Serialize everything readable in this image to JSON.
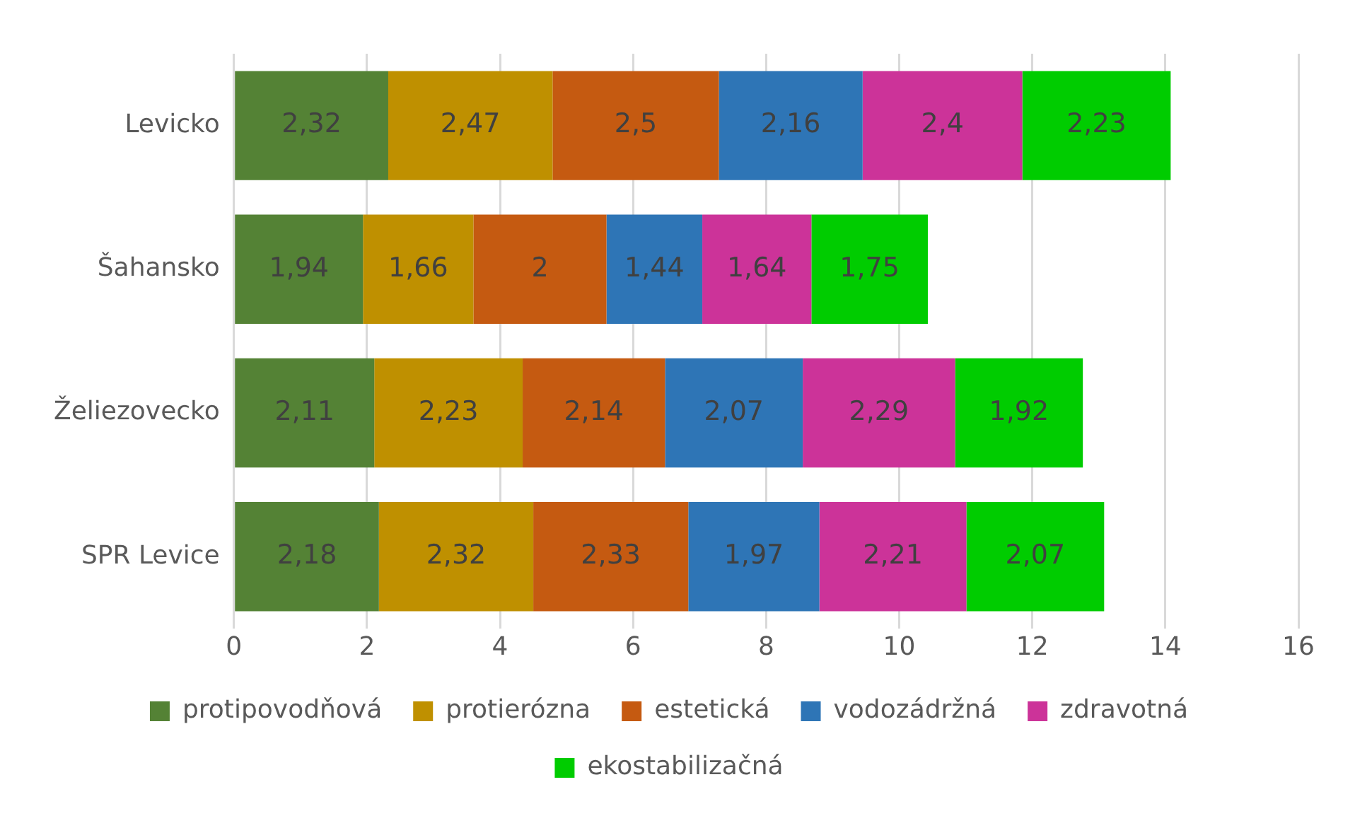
{
  "chart_data": {
    "type": "bar",
    "orientation": "horizontal",
    "stacked": true,
    "categories": [
      "Levicko",
      "Šahansko",
      "Želiezovecko",
      "SPR Levice"
    ],
    "xlim": [
      0,
      16
    ],
    "xticks": [
      0,
      2,
      4,
      6,
      8,
      10,
      12,
      14,
      16
    ],
    "grid": "x",
    "legend": "bottom",
    "series": [
      {
        "name": "protipovodňová",
        "color": "#548235",
        "values": [
          2.32,
          1.94,
          2.11,
          2.18
        ],
        "value_labels": [
          "2,32",
          "1,94",
          "2,11",
          "2,18"
        ]
      },
      {
        "name": "protierózna",
        "color": "#bf9000",
        "values": [
          2.47,
          1.66,
          2.23,
          2.32
        ],
        "value_labels": [
          "2,47",
          "1,66",
          "2,23",
          "2,32"
        ]
      },
      {
        "name": "estetická",
        "color": "#c55a11",
        "values": [
          2.5,
          2,
          2.14,
          2.33
        ],
        "value_labels": [
          "2,5",
          "2",
          "2,14",
          "2,33"
        ]
      },
      {
        "name": "vodozádržná",
        "color": "#2e75b6",
        "values": [
          2.16,
          1.44,
          2.07,
          1.97
        ],
        "value_labels": [
          "2,16",
          "1,44",
          "2,07",
          "1,97"
        ]
      },
      {
        "name": "zdravotná",
        "color": "#cc3399",
        "values": [
          2.4,
          1.64,
          2.29,
          2.21
        ],
        "value_labels": [
          "2,4",
          "1,64",
          "2,29",
          "2,21"
        ]
      },
      {
        "name": "ekostabilizačná",
        "color": "#00cc00",
        "values": [
          2.23,
          1.75,
          1.92,
          2.07
        ],
        "value_labels": [
          "2,23",
          "1,75",
          "1,92",
          "2,07"
        ]
      }
    ]
  }
}
